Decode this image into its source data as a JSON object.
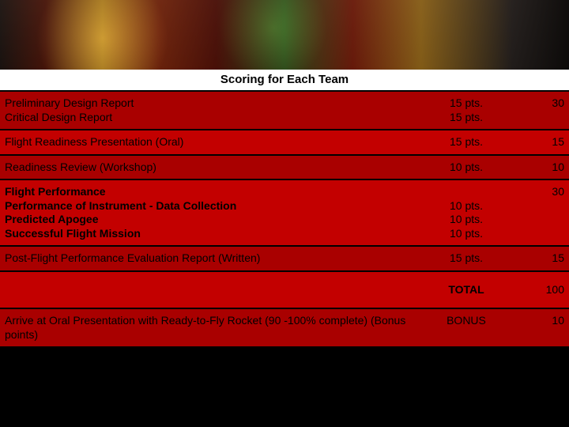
{
  "title": "Scoring for Each Team",
  "colors": {
    "row_dark": "#a90000",
    "row_light": "#c30000",
    "text": "#000000",
    "title_bg": "#ffffff",
    "page_bg": "#000000"
  },
  "font": {
    "family": "Arial",
    "title_size_pt": 15,
    "body_size_pt": 14
  },
  "rows": [
    {
      "lines": [
        "Preliminary Design Report",
        "Critical Design Report"
      ],
      "pts_lines": [
        "15 pts.",
        "15 pts."
      ],
      "score": "30",
      "alt": false,
      "bold": false
    },
    {
      "lines": [
        "Flight Readiness Presentation (Oral)"
      ],
      "pts_lines": [
        "15 pts."
      ],
      "score": "15",
      "alt": true,
      "bold": false
    },
    {
      "lines": [
        "Readiness Review (Workshop)"
      ],
      "pts_lines": [
        "10 pts."
      ],
      "score": "10",
      "alt": false,
      "bold": false
    },
    {
      "lines": [
        "Flight Performance",
        "Performance of Instrument - Data Collection",
        "Predicted Apogee",
        "Successful Flight Mission"
      ],
      "pts_lines": [
        "",
        "10 pts.",
        "10 pts.",
        "10 pts."
      ],
      "score": "30",
      "alt": true,
      "bold": true
    },
    {
      "lines": [
        "Post-Flight Performance  Evaluation Report (Written)"
      ],
      "pts_lines": [
        "15 pts."
      ],
      "score": "15",
      "alt": false,
      "bold": false
    }
  ],
  "total": {
    "label": "TOTAL",
    "value": "100"
  },
  "bonus": {
    "desc": "Arrive at Oral Presentation with Ready-to-Fly Rocket (90 -100% complete) (Bonus points)",
    "label": "BONUS",
    "value": "10"
  }
}
